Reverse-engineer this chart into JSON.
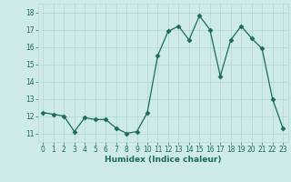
{
  "x": [
    0,
    1,
    2,
    3,
    4,
    5,
    6,
    7,
    8,
    9,
    10,
    11,
    12,
    13,
    14,
    15,
    16,
    17,
    18,
    19,
    20,
    21,
    22,
    23
  ],
  "y": [
    12.2,
    12.1,
    12.0,
    11.1,
    11.9,
    11.8,
    11.8,
    11.3,
    11.0,
    11.1,
    12.2,
    15.5,
    16.9,
    17.2,
    16.4,
    17.8,
    17.0,
    14.3,
    16.4,
    17.2,
    16.5,
    15.9,
    13.0,
    11.3
  ],
  "line_color": "#1a6b5a",
  "marker": "D",
  "marker_size": 2.5,
  "bg_color": "#ceeaea",
  "grid_color": "#b8d8d8",
  "xlabel": "Humidex (Indice chaleur)",
  "ylabel_ticks": [
    11,
    12,
    13,
    14,
    15,
    16,
    17,
    18
  ],
  "xlim": [
    -0.5,
    23.5
  ],
  "ylim": [
    10.5,
    18.5
  ],
  "tick_fontsize": 5.5,
  "xlabel_fontsize": 6.5
}
